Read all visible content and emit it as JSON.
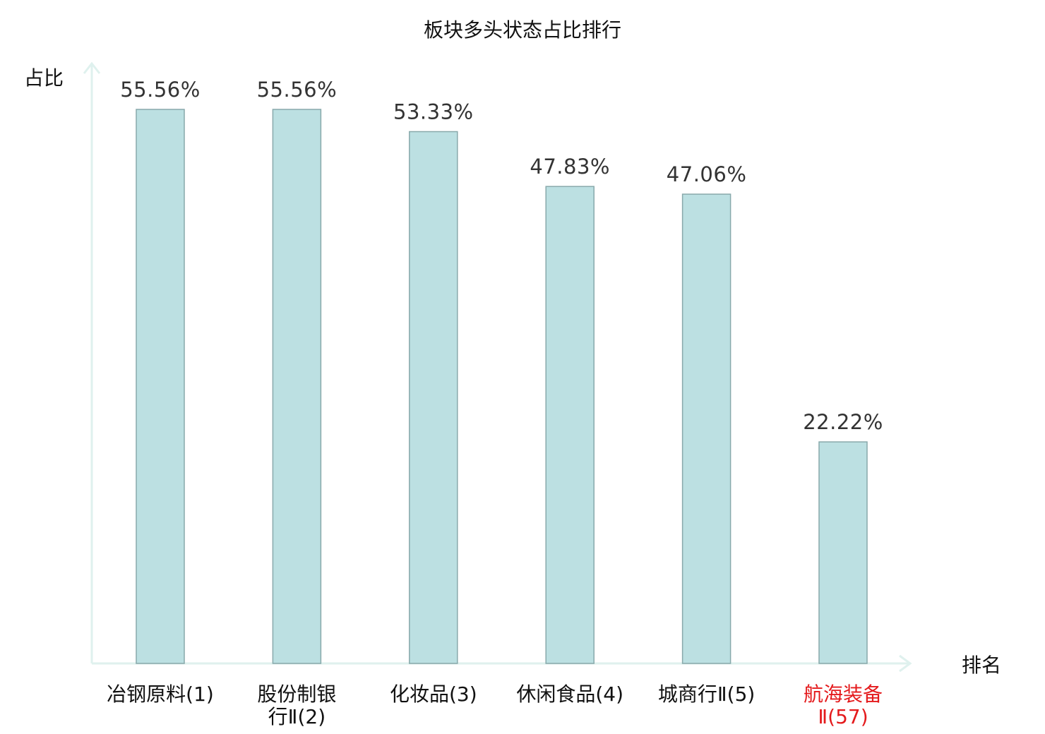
{
  "chart_data": {
    "type": "bar",
    "title": "板块多头状态占比排行",
    "ylabel": "占比",
    "xlabel": "排名",
    "ylim": [
      0,
      60
    ],
    "categories": [
      {
        "lines": [
          "冶钢原料(1)"
        ],
        "highlight": false
      },
      {
        "lines": [
          "股份制银",
          "行Ⅱ(2)"
        ],
        "highlight": false
      },
      {
        "lines": [
          "化妆品(3)"
        ],
        "highlight": false
      },
      {
        "lines": [
          "休闲食品(4)"
        ],
        "highlight": false
      },
      {
        "lines": [
          "城商行Ⅱ(5)"
        ],
        "highlight": false
      },
      {
        "lines": [
          "航海装备",
          "Ⅱ(57)"
        ],
        "highlight": true
      }
    ],
    "values": [
      55.56,
      55.56,
      53.33,
      47.83,
      47.06,
      22.22
    ],
    "value_labels": [
      "55.56%",
      "55.56%",
      "53.33%",
      "47.83%",
      "47.06%",
      "22.22%"
    ],
    "grid": false,
    "colors": {
      "bar_fill": "#bce0e2",
      "bar_stroke": "#88a9ab",
      "axis": "#dff1ee",
      "highlight_text": "#e41a1c"
    }
  }
}
